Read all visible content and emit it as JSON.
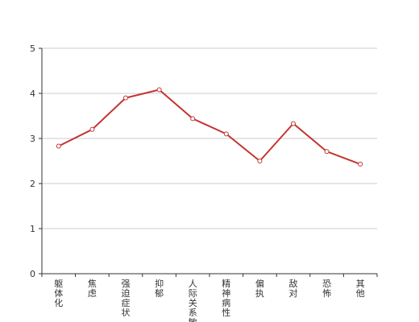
{
  "chart_data": {
    "type": "line",
    "categories": [
      "躯体化",
      "焦虑",
      "强迫症状",
      "抑郁",
      "人际关系敏",
      "精神病性",
      "偏执",
      "敌对",
      "恐怖",
      "其他"
    ],
    "series": [
      {
        "values": [
          2.83,
          3.2,
          3.9,
          4.08,
          3.44,
          3.1,
          2.5,
          3.33,
          2.71,
          2.43
        ]
      }
    ],
    "y_ticks": [
      "0",
      "1",
      "2",
      "3",
      "4",
      "5"
    ],
    "ylim": [
      0,
      5
    ],
    "xlabel": "",
    "ylabel": "",
    "title": "",
    "grid": true,
    "colors": {
      "line": "#c23531",
      "grid": "#cccccc",
      "axis": "#333333"
    }
  }
}
